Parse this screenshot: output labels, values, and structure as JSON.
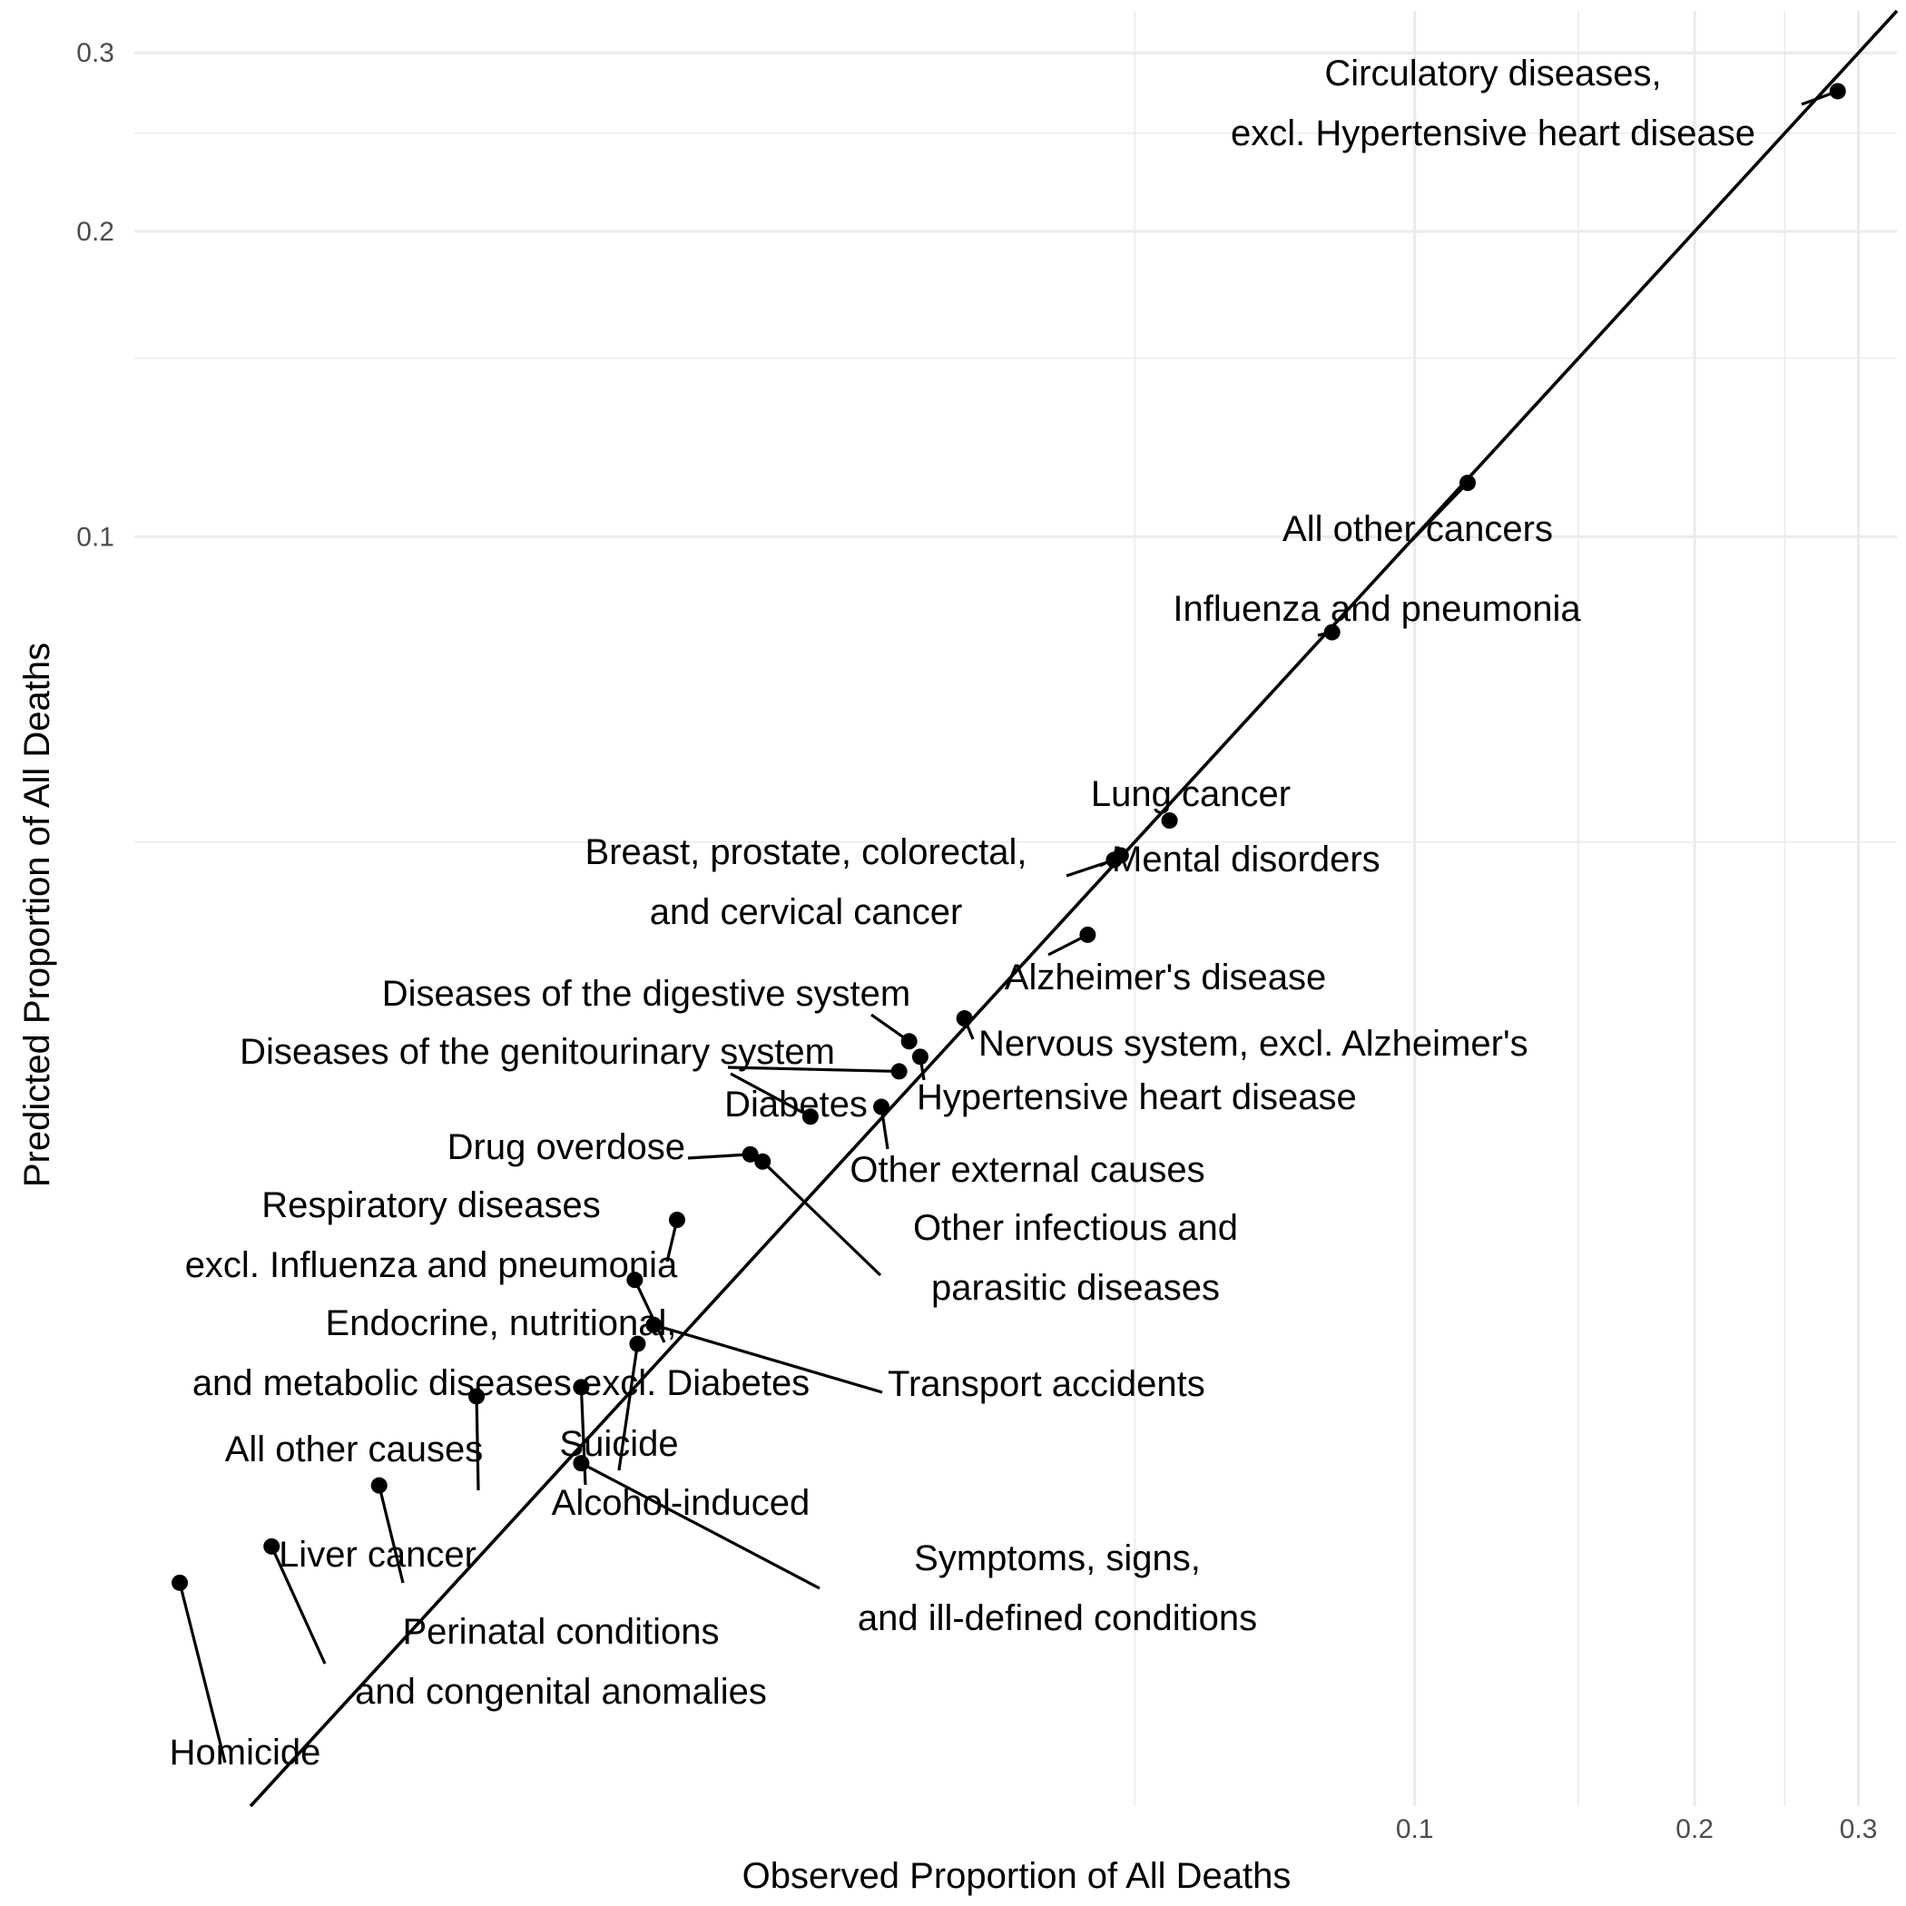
{
  "chart_data": {
    "type": "scatter",
    "title": "",
    "xlabel": "Observed Proportion of All Deaths",
    "ylabel": "Predicted Proportion of All Deaths",
    "xscale": "log",
    "yscale": "log",
    "xlim": [
      0.0042,
      0.33
    ],
    "ylim": [
      0.0056,
      0.33
    ],
    "x_ticks": [
      {
        "value": 0.1,
        "label": "0.1"
      },
      {
        "value": 0.2,
        "label": "0.2"
      },
      {
        "value": 0.3,
        "label": "0.3"
      }
    ],
    "y_ticks": [
      {
        "value": 0.1,
        "label": "0.1"
      },
      {
        "value": 0.2,
        "label": "0.2"
      },
      {
        "value": 0.3,
        "label": "0.3"
      }
    ],
    "x_minor_ticks": [
      0.05,
      0.15,
      0.25
    ],
    "y_minor_ticks": [
      0.05,
      0.15,
      0.25
    ],
    "grid": true,
    "reference_line": "y = x",
    "points": [
      {
        "label": [
          "Circulatory diseases,",
          "excl. Hypertensive heart disease"
        ],
        "x": 0.285,
        "y": 0.275
      },
      {
        "label": [
          "All other cancers"
        ],
        "x": 0.114,
        "y": 0.113
      },
      {
        "label": [
          "Influenza and pneumonia"
        ],
        "x": 0.0815,
        "y": 0.0805
      },
      {
        "label": [
          "Lung cancer"
        ],
        "x": 0.0545,
        "y": 0.0525
      },
      {
        "label": [
          "Mental disorders"
        ],
        "x": 0.0483,
        "y": 0.0485
      },
      {
        "label": [
          "Breast, prostate, colorectal,",
          "and cervical cancer"
        ],
        "x": 0.0475,
        "y": 0.048
      },
      {
        "label": [
          "Alzheimer's disease"
        ],
        "x": 0.0445,
        "y": 0.0405
      },
      {
        "label": [
          "Nervous system, excl. Alzheimer's"
        ],
        "x": 0.0328,
        "y": 0.0335
      },
      {
        "label": [
          "Diseases of the digestive system"
        ],
        "x": 0.0286,
        "y": 0.0318
      },
      {
        "label": [
          "Hypertensive heart disease"
        ],
        "x": 0.0294,
        "y": 0.0307
      },
      {
        "label": [
          "Diseases of the genitourinary system"
        ],
        "x": 0.0279,
        "y": 0.0297
      },
      {
        "label": [
          "Other external causes"
        ],
        "x": 0.0267,
        "y": 0.0274
      },
      {
        "label": [
          "Diabetes"
        ],
        "x": 0.0224,
        "y": 0.0268
      },
      {
        "label": [
          "Drug overdose"
        ],
        "x": 0.0193,
        "y": 0.0246
      },
      {
        "label": [
          "Other infectious and",
          "parasitic diseases"
        ],
        "x": 0.0199,
        "y": 0.0242
      },
      {
        "label": [
          "Respiratory diseases",
          "excl. Influenza and pneumonia"
        ],
        "x": 0.0161,
        "y": 0.0212
      },
      {
        "label": [
          "Endocrine, nutritional,",
          "and metabolic diseases excl. Diabetes"
        ],
        "x": 0.0145,
        "y": 0.0185
      },
      {
        "label": [
          "Transport accidents"
        ],
        "x": 0.0152,
        "y": 0.0167
      },
      {
        "label": [
          "Suicide"
        ],
        "x": 0.0146,
        "y": 0.016
      },
      {
        "label": [
          "Alcohol-induced"
        ],
        "x": 0.0127,
        "y": 0.0145
      },
      {
        "label": [
          "All other causes"
        ],
        "x": 0.0098,
        "y": 0.0142
      },
      {
        "label": [
          "Symptoms, signs,",
          "and ill-defined conditions"
        ],
        "x": 0.0127,
        "y": 0.0122
      },
      {
        "label": [
          "Liver cancer"
        ],
        "x": 0.0077,
        "y": 0.0116
      },
      {
        "label": [
          "Perinatal conditions",
          "and congenital anomalies"
        ],
        "x": 0.0059,
        "y": 0.0101
      },
      {
        "label": [
          "Homicide"
        ],
        "x": 0.0047,
        "y": 0.0093
      }
    ]
  }
}
